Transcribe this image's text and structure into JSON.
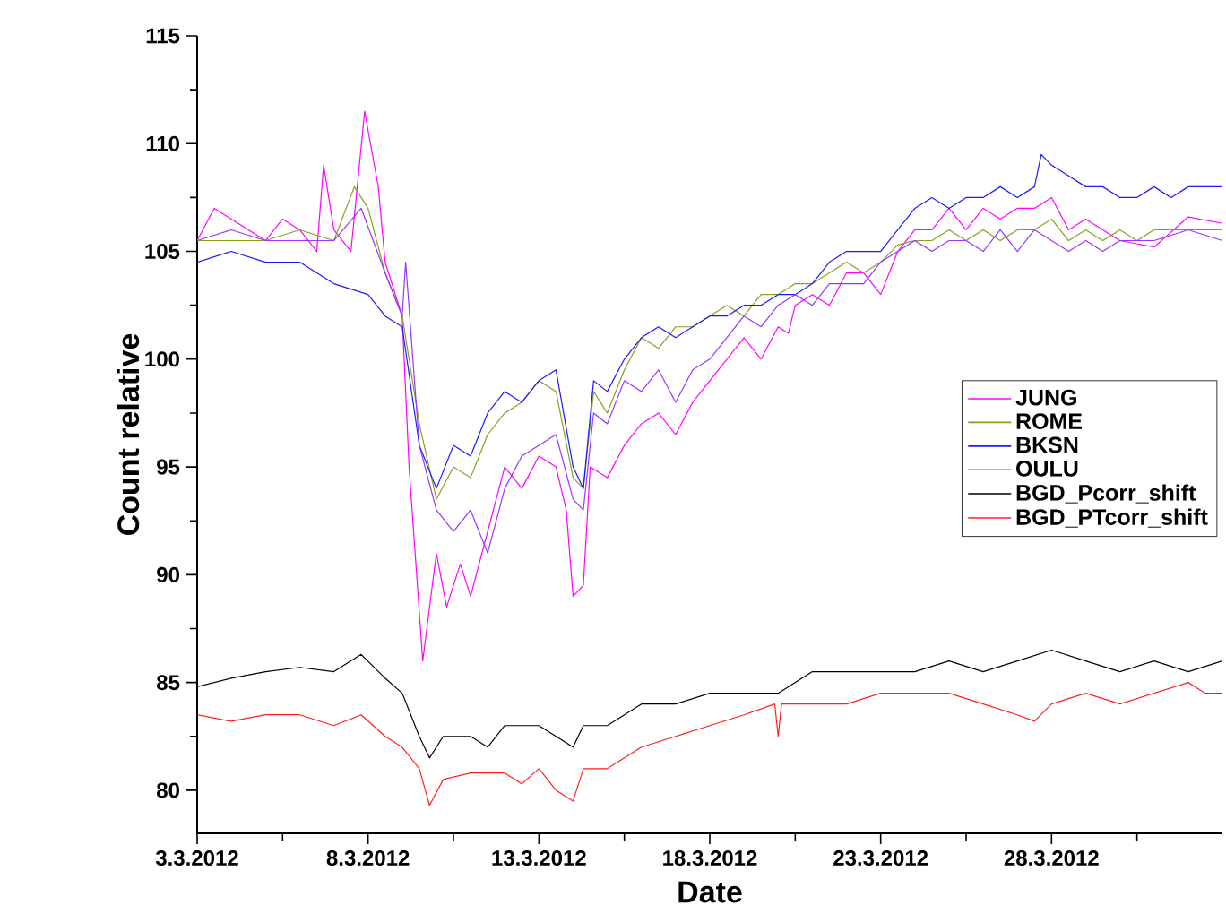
{
  "chart_data": {
    "type": "line",
    "xlabel": "Date",
    "ylabel": "Count relative",
    "xlim": [
      "2012-03-03",
      "2012-04-02"
    ],
    "ylim": [
      78,
      115
    ],
    "xticks": [
      {
        "value": "2012-03-03",
        "label": "3.3.2012"
      },
      {
        "value": "2012-03-05T12:00",
        "label": null
      },
      {
        "value": "2012-03-08",
        "label": "8.3.2012"
      },
      {
        "value": "2012-03-10T12:00",
        "label": null
      },
      {
        "value": "2012-03-13",
        "label": "13.3.2012"
      },
      {
        "value": "2012-03-15T12:00",
        "label": null
      },
      {
        "value": "2012-03-18",
        "label": "18.3.2012"
      },
      {
        "value": "2012-03-20T12:00",
        "label": null
      },
      {
        "value": "2012-03-23",
        "label": "23.3.2012"
      },
      {
        "value": "2012-03-25T12:00",
        "label": null
      },
      {
        "value": "2012-03-28",
        "label": "28.3.2012"
      },
      {
        "value": "2012-03-30T12:00",
        "label": null
      }
    ],
    "yticks": [
      80,
      {
        "value": 82.5,
        "label": null
      },
      85,
      {
        "value": 87.5,
        "label": null
      },
      90,
      {
        "value": 92.5,
        "label": null
      },
      95,
      {
        "value": 97.5,
        "label": null
      },
      100,
      {
        "value": 102.5,
        "label": null
      },
      105,
      {
        "value": 107.5,
        "label": null
      },
      110,
      {
        "value": 112.5,
        "label": null
      },
      115
    ],
    "grid": false,
    "legend": "right",
    "series": [
      {
        "name": "JUNG",
        "color": "#ff00ff",
        "x": [
          "2012-03-03",
          "2012-03-03T12:00",
          "2012-03-04",
          "2012-03-04T12:00",
          "2012-03-05",
          "2012-03-05T12:00",
          "2012-03-06",
          "2012-03-06T12:00",
          "2012-03-06T16:48",
          "2012-03-07",
          "2012-03-07T12:00",
          "2012-03-07T21:36",
          "2012-03-08T07:12",
          "2012-03-08T12:00",
          "2012-03-09",
          "2012-03-09T04:48",
          "2012-03-09T14:24",
          "2012-03-10",
          "2012-03-10T07:12",
          "2012-03-10T16:48",
          "2012-03-11",
          "2012-03-11T12:00",
          "2012-03-12",
          "2012-03-12T12:00",
          "2012-03-13",
          "2012-03-13T12:00",
          "2012-03-13T19:12",
          "2012-03-14",
          "2012-03-14T07:12",
          "2012-03-14T12:00",
          "2012-03-15",
          "2012-03-15T12:00",
          "2012-03-16",
          "2012-03-16T12:00",
          "2012-03-17",
          "2012-03-17T12:00",
          "2012-03-18",
          "2012-03-18T12:00",
          "2012-03-19",
          "2012-03-19T12:00",
          "2012-03-20",
          "2012-03-20T07:12",
          "2012-03-20T12:00",
          "2012-03-21",
          "2012-03-21T12:00",
          "2012-03-22",
          "2012-03-22T12:00",
          "2012-03-23",
          "2012-03-23T12:00",
          "2012-03-24",
          "2012-03-24T12:00",
          "2012-03-25",
          "2012-03-25T12:00",
          "2012-03-26",
          "2012-03-26T12:00",
          "2012-03-27",
          "2012-03-27T12:00",
          "2012-03-28",
          "2012-03-28T12:00",
          "2012-03-29",
          "2012-03-29T12:00",
          "2012-03-30",
          "2012-03-31",
          "2012-04-01",
          "2012-04-02"
        ],
        "values": [
          105.5,
          107,
          106.5,
          106,
          105.5,
          106.5,
          106,
          105,
          109,
          106,
          105,
          111.5,
          108,
          104.5,
          102,
          95,
          86,
          91,
          88.5,
          90.5,
          89,
          92,
          95,
          94,
          95.5,
          95,
          93,
          89,
          89.5,
          95,
          94.5,
          96,
          97,
          97.5,
          96.5,
          98,
          99,
          100,
          101,
          100,
          101.5,
          101.2,
          102.5,
          103,
          102.5,
          104,
          104,
          103,
          105,
          106,
          106,
          107,
          106,
          107,
          106.5,
          107,
          107,
          107.5,
          106,
          106.5,
          106,
          105.5,
          105.2,
          106.6,
          106.3
        ]
      },
      {
        "name": "ROME",
        "color": "#86a01e",
        "x": [
          "2012-03-03",
          "2012-03-04",
          "2012-03-05",
          "2012-03-06",
          "2012-03-07",
          "2012-03-07T14:24",
          "2012-03-08",
          "2012-03-08T12:00",
          "2012-03-09",
          "2012-03-09T12:00",
          "2012-03-10",
          "2012-03-10T12:00",
          "2012-03-11",
          "2012-03-11T12:00",
          "2012-03-12",
          "2012-03-12T12:00",
          "2012-03-13",
          "2012-03-13T12:00",
          "2012-03-14",
          "2012-03-14T07:12",
          "2012-03-14T14:24",
          "2012-03-15",
          "2012-03-15T12:00",
          "2012-03-16",
          "2012-03-16T12:00",
          "2012-03-17",
          "2012-03-17T12:00",
          "2012-03-18",
          "2012-03-18T12:00",
          "2012-03-19",
          "2012-03-19T12:00",
          "2012-03-20",
          "2012-03-20T12:00",
          "2012-03-21",
          "2012-03-21T12:00",
          "2012-03-22",
          "2012-03-22T12:00",
          "2012-03-23",
          "2012-03-23T12:00",
          "2012-03-24",
          "2012-03-24T12:00",
          "2012-03-25",
          "2012-03-25T12:00",
          "2012-03-26",
          "2012-03-26T12:00",
          "2012-03-27",
          "2012-03-27T12:00",
          "2012-03-28",
          "2012-03-28T12:00",
          "2012-03-29",
          "2012-03-29T12:00",
          "2012-03-30",
          "2012-03-30T12:00",
          "2012-03-31",
          "2012-04-01",
          "2012-04-02"
        ],
        "values": [
          105.5,
          105.5,
          105.5,
          106,
          105.5,
          108,
          107,
          104,
          102,
          97,
          93.5,
          95,
          94.5,
          96.5,
          97.5,
          98,
          99,
          98.5,
          94.5,
          94,
          98.5,
          97.5,
          99.5,
          101,
          100.5,
          101.5,
          101.5,
          102,
          102.5,
          102,
          103,
          103,
          103.5,
          103.5,
          104,
          104.5,
          104,
          104.5,
          105.3,
          105.5,
          105.5,
          106,
          105.5,
          106,
          105.5,
          106,
          106,
          106.5,
          105.5,
          106,
          105.5,
          106,
          105.5,
          106,
          106,
          106
        ]
      },
      {
        "name": "BKSN",
        "color": "#1a1aff",
        "x": [
          "2012-03-03",
          "2012-03-04",
          "2012-03-05",
          "2012-03-06",
          "2012-03-07",
          "2012-03-08",
          "2012-03-08T12:00",
          "2012-03-09",
          "2012-03-09T12:00",
          "2012-03-10",
          "2012-03-10T12:00",
          "2012-03-11",
          "2012-03-11T12:00",
          "2012-03-12",
          "2012-03-12T12:00",
          "2012-03-13",
          "2012-03-13T12:00",
          "2012-03-14",
          "2012-03-14T07:12",
          "2012-03-14T14:24",
          "2012-03-15",
          "2012-03-15T12:00",
          "2012-03-16",
          "2012-03-16T12:00",
          "2012-03-17",
          "2012-03-17T12:00",
          "2012-03-18",
          "2012-03-18T12:00",
          "2012-03-19",
          "2012-03-19T12:00",
          "2012-03-20",
          "2012-03-20T12:00",
          "2012-03-21",
          "2012-03-21T12:00",
          "2012-03-22",
          "2012-03-22T12:00",
          "2012-03-23",
          "2012-03-23T12:00",
          "2012-03-24",
          "2012-03-24T12:00",
          "2012-03-25",
          "2012-03-25T12:00",
          "2012-03-26",
          "2012-03-26T12:00",
          "2012-03-27",
          "2012-03-27T12:00",
          "2012-03-27T16:48",
          "2012-03-28",
          "2012-03-28T12:00",
          "2012-03-29",
          "2012-03-29T12:00",
          "2012-03-30",
          "2012-03-30T12:00",
          "2012-03-31",
          "2012-03-31T12:00",
          "2012-04-01",
          "2012-04-02"
        ],
        "values": [
          104.5,
          105,
          104.5,
          104.5,
          103.5,
          103,
          102,
          101.5,
          96,
          94,
          96,
          95.5,
          97.5,
          98.5,
          98,
          99,
          99.5,
          95,
          94,
          99,
          98.5,
          100,
          101,
          101.5,
          101,
          101.5,
          102,
          102,
          102.5,
          102.5,
          103,
          103,
          103.5,
          104.5,
          105,
          105,
          105,
          106,
          107,
          107.5,
          107,
          107.5,
          107.5,
          108,
          107.5,
          108,
          109.5,
          109,
          108.5,
          108,
          108,
          107.5,
          107.5,
          108,
          107.5,
          108,
          108
        ]
      },
      {
        "name": "OULU",
        "color": "#9933ff",
        "x": [
          "2012-03-03",
          "2012-03-04",
          "2012-03-05",
          "2012-03-06",
          "2012-03-07",
          "2012-03-07T19:12",
          "2012-03-08T12:00",
          "2012-03-09",
          "2012-03-09T02:24",
          "2012-03-09T12:00",
          "2012-03-10",
          "2012-03-10T12:00",
          "2012-03-11",
          "2012-03-11T12:00",
          "2012-03-12",
          "2012-03-12T12:00",
          "2012-03-13",
          "2012-03-13T12:00",
          "2012-03-14",
          "2012-03-14T07:12",
          "2012-03-14T14:24",
          "2012-03-15",
          "2012-03-15T12:00",
          "2012-03-16",
          "2012-03-16T12:00",
          "2012-03-17",
          "2012-03-17T12:00",
          "2012-03-18",
          "2012-03-18T12:00",
          "2012-03-19",
          "2012-03-19T12:00",
          "2012-03-20",
          "2012-03-20T12:00",
          "2012-03-21",
          "2012-03-21T12:00",
          "2012-03-22",
          "2012-03-22T12:00",
          "2012-03-23",
          "2012-03-23T12:00",
          "2012-03-24",
          "2012-03-24T12:00",
          "2012-03-25",
          "2012-03-25T12:00",
          "2012-03-26",
          "2012-03-26T12:00",
          "2012-03-27",
          "2012-03-27T12:00",
          "2012-03-28",
          "2012-03-28T12:00",
          "2012-03-29",
          "2012-03-29T12:00",
          "2012-03-30",
          "2012-03-31",
          "2012-04-01",
          "2012-04-02"
        ],
        "values": [
          105.5,
          106,
          105.5,
          105.5,
          105.5,
          107,
          104,
          102,
          104.5,
          96,
          93,
          92,
          93,
          91,
          94,
          95.5,
          96,
          96.5,
          93.5,
          93,
          97.5,
          97,
          99,
          98.5,
          99.5,
          98,
          99.5,
          100,
          101,
          102,
          101.5,
          102.5,
          103,
          102.5,
          103.5,
          103.5,
          103.5,
          104.5,
          105,
          105.5,
          105,
          105.5,
          105.5,
          105,
          106,
          105,
          106,
          105.5,
          105,
          105.5,
          105,
          105.5,
          105.5,
          106,
          105.5
        ]
      },
      {
        "name": "BGD_Pcorr_shift",
        "color": "#000000",
        "x": [
          "2012-03-03",
          "2012-03-04",
          "2012-03-05",
          "2012-03-06",
          "2012-03-07",
          "2012-03-07T19:12",
          "2012-03-08T12:00",
          "2012-03-09",
          "2012-03-09T12:00",
          "2012-03-09T19:12",
          "2012-03-10T04:48",
          "2012-03-11",
          "2012-03-11T12:00",
          "2012-03-12",
          "2012-03-13",
          "2012-03-13T12:00",
          "2012-03-14",
          "2012-03-14T07:12",
          "2012-03-15",
          "2012-03-16",
          "2012-03-17",
          "2012-03-18",
          "2012-03-19",
          "2012-03-20",
          "2012-03-21",
          "2012-03-22",
          "2012-03-23",
          "2012-03-24",
          "2012-03-25",
          "2012-03-26",
          "2012-03-27",
          "2012-03-28",
          "2012-03-29",
          "2012-03-30",
          "2012-03-31",
          "2012-04-01",
          "2012-04-02"
        ],
        "values": [
          84.8,
          85.2,
          85.5,
          85.7,
          85.5,
          86.3,
          85.2,
          84.5,
          82.5,
          81.5,
          82.5,
          82.5,
          82,
          83,
          83,
          82.5,
          82,
          83,
          83,
          84,
          84,
          84.5,
          84.5,
          84.5,
          85.5,
          85.5,
          85.5,
          85.5,
          86,
          85.5,
          86,
          86.5,
          86,
          85.5,
          86,
          85.5,
          86
        ]
      },
      {
        "name": "BGD_PTcorr_shift",
        "color": "#ff2020",
        "x": [
          "2012-03-03",
          "2012-03-04",
          "2012-03-05",
          "2012-03-06",
          "2012-03-07",
          "2012-03-07T19:12",
          "2012-03-08T12:00",
          "2012-03-09",
          "2012-03-09T12:00",
          "2012-03-09T19:12",
          "2012-03-10T04:48",
          "2012-03-11",
          "2012-03-12",
          "2012-03-12T12:00",
          "2012-03-13",
          "2012-03-13T12:00",
          "2012-03-14",
          "2012-03-14T07:12",
          "2012-03-15",
          "2012-03-16",
          "2012-03-17",
          "2012-03-18",
          "2012-03-19",
          "2012-03-19T21:36",
          "2012-03-20",
          "2012-03-20T02:24",
          "2012-03-21",
          "2012-03-22",
          "2012-03-23",
          "2012-03-24",
          "2012-03-25",
          "2012-03-26",
          "2012-03-27",
          "2012-03-27T12:00",
          "2012-03-28",
          "2012-03-29",
          "2012-03-30",
          "2012-03-31",
          "2012-04-01",
          "2012-04-01T12:00",
          "2012-04-02"
        ],
        "values": [
          83.5,
          83.2,
          83.5,
          83.5,
          83,
          83.5,
          82.5,
          82,
          81,
          79.3,
          80.5,
          80.8,
          80.8,
          80.3,
          81,
          80,
          79.5,
          81,
          81,
          82,
          82.5,
          83,
          83.5,
          84,
          82.5,
          84,
          84,
          84,
          84.5,
          84.5,
          84.5,
          84,
          83.5,
          83.2,
          84,
          84.5,
          84,
          84.5,
          85,
          84.5,
          84.5
        ]
      }
    ]
  }
}
